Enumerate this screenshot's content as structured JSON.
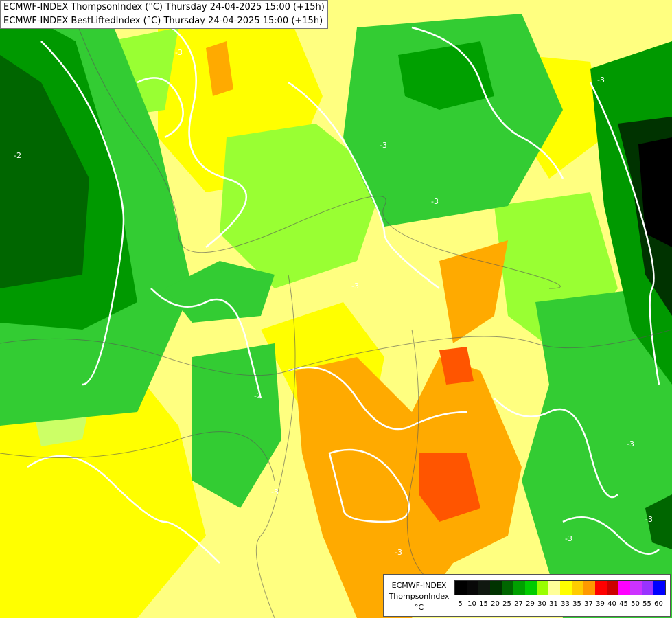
{
  "header": {
    "line1": "ECMWF-INDEX ThompsonIndex (°C) Thursday 24-04-2025 15:00 (+15h)",
    "line2": "ECMWF-INDEX BestLiftedIndex (°C) Thursday 24-04-2025 15:00 (+15h)"
  },
  "legend": {
    "model": "ECMWF-INDEX",
    "parameter": "ThompsonIndex",
    "unit": "°C",
    "bins": [
      {
        "label": "5",
        "color": "#000000"
      },
      {
        "label": "10",
        "color": "#080808"
      },
      {
        "label": "15",
        "color": "#101810"
      },
      {
        "label": "20",
        "color": "#003300"
      },
      {
        "label": "25",
        "color": "#006600"
      },
      {
        "label": "27",
        "color": "#00a000"
      },
      {
        "label": "29",
        "color": "#00cc00"
      },
      {
        "label": "30",
        "color": "#99ff00"
      },
      {
        "label": "31",
        "color": "#ffff99"
      },
      {
        "label": "33",
        "color": "#ffff00"
      },
      {
        "label": "35",
        "color": "#ffcc00"
      },
      {
        "label": "37",
        "color": "#ff9900"
      },
      {
        "label": "39",
        "color": "#ff0000"
      },
      {
        "label": "40",
        "color": "#cc0000"
      },
      {
        "label": "45",
        "color": "#ff00ff"
      },
      {
        "label": "50",
        "color": "#cc33ff"
      },
      {
        "label": "55",
        "color": "#9933ff"
      },
      {
        "label": "60",
        "color": "#0000ff"
      }
    ]
  },
  "contour_labels": [
    "-3",
    "-3",
    "-3",
    "-3",
    "-2",
    "-2",
    "-3",
    "-3",
    "-3",
    "-3",
    "-3",
    "-3"
  ]
}
